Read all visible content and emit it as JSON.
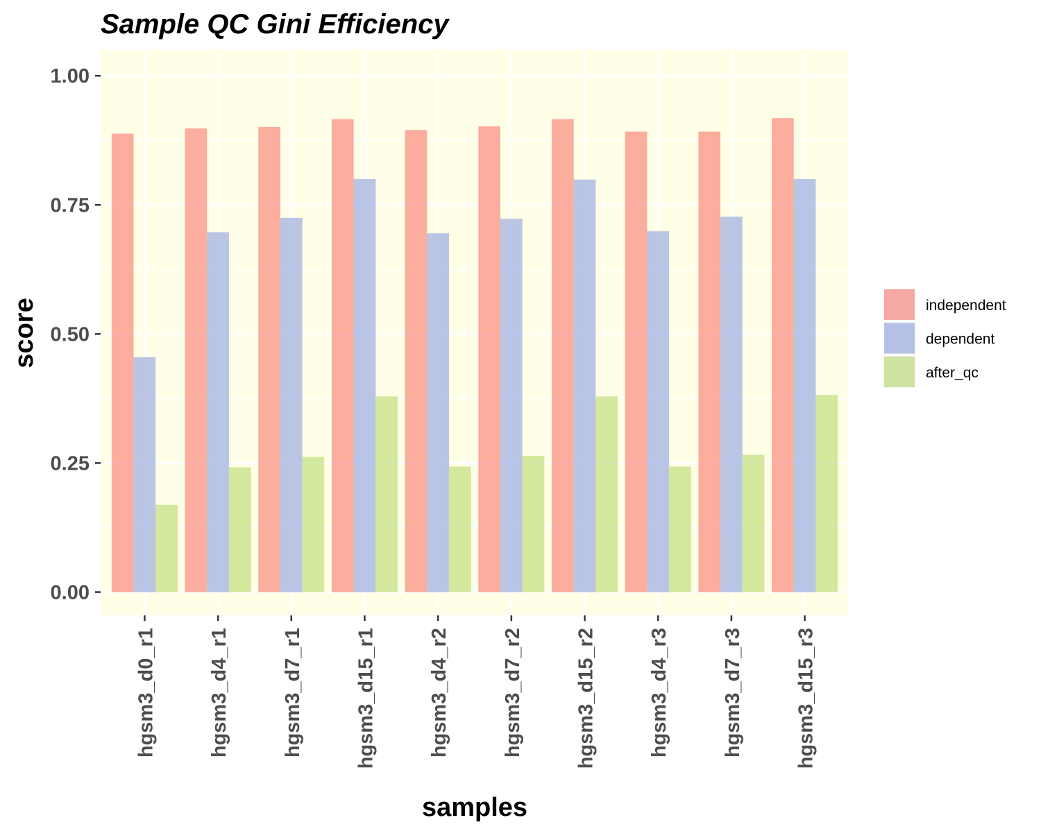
{
  "chart_data": {
    "type": "bar",
    "title": "Sample QC Gini Efficiency",
    "xlabel": "samples",
    "ylabel": "score",
    "ylim": [
      -0.045,
      1.05
    ],
    "yticks": [
      0.0,
      0.25,
      0.5,
      0.75,
      1.0
    ],
    "ytick_labels": [
      "0.00",
      "0.25",
      "0.50",
      "0.75",
      "1.00"
    ],
    "categories": [
      "hgsm3_d0_r1",
      "hgsm3_d4_r1",
      "hgsm3_d7_r1",
      "hgsm3_d15_r1",
      "hgsm3_d4_r2",
      "hgsm3_d7_r2",
      "hgsm3_d15_r2",
      "hgsm3_d4_r3",
      "hgsm3_d7_r3",
      "hgsm3_d15_r3"
    ],
    "series": [
      {
        "name": "independent",
        "color": "#F8766D",
        "values": [
          0.888,
          0.898,
          0.901,
          0.916,
          0.895,
          0.902,
          0.916,
          0.892,
          0.892,
          0.918
        ]
      },
      {
        "name": "dependent",
        "color": "#8C9FE0",
        "values": [
          0.455,
          0.697,
          0.725,
          0.8,
          0.695,
          0.723,
          0.799,
          0.699,
          0.727,
          0.8
        ]
      },
      {
        "name": "after_qc",
        "color": "#B5D86A",
        "values": [
          0.169,
          0.242,
          0.262,
          0.379,
          0.243,
          0.264,
          0.379,
          0.243,
          0.266,
          0.382
        ]
      }
    ],
    "bar_opacity": 0.6,
    "panel_background": "#FFFFE8",
    "grid": true,
    "grid_color": "#ffffff",
    "legend_position": "right"
  }
}
